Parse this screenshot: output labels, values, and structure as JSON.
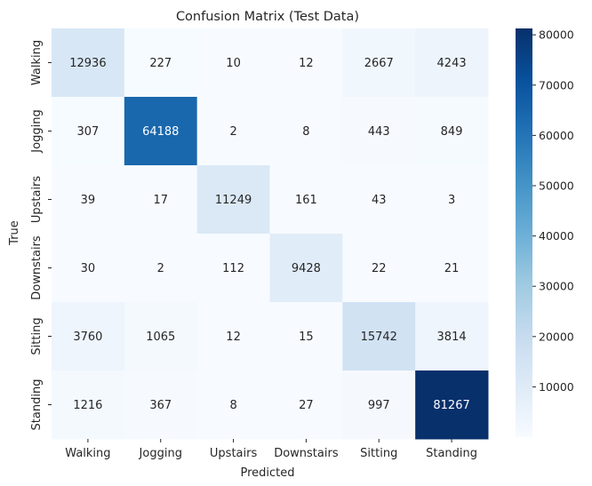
{
  "chart_data": {
    "type": "heatmap",
    "title": "Confusion Matrix (Test Data)",
    "xlabel": "Predicted",
    "ylabel": "True",
    "x_categories": [
      "Walking",
      "Jogging",
      "Upstairs",
      "Downstairs",
      "Sitting",
      "Standing"
    ],
    "y_categories": [
      "Walking",
      "Jogging",
      "Upstairs",
      "Downstairs",
      "Sitting",
      "Standing"
    ],
    "values": [
      [
        12936,
        227,
        10,
        12,
        2667,
        4243
      ],
      [
        307,
        64188,
        2,
        8,
        443,
        849
      ],
      [
        39,
        17,
        11249,
        161,
        43,
        3
      ],
      [
        30,
        2,
        112,
        9428,
        22,
        21
      ],
      [
        3760,
        1065,
        12,
        15,
        15742,
        3814
      ],
      [
        1216,
        367,
        8,
        27,
        997,
        81267
      ]
    ],
    "colormap": "Blues",
    "colorbar": {
      "min": 2,
      "max": 81267,
      "ticks": [
        10000,
        20000,
        30000,
        40000,
        50000,
        60000,
        70000,
        80000
      ]
    },
    "legend": "none"
  }
}
